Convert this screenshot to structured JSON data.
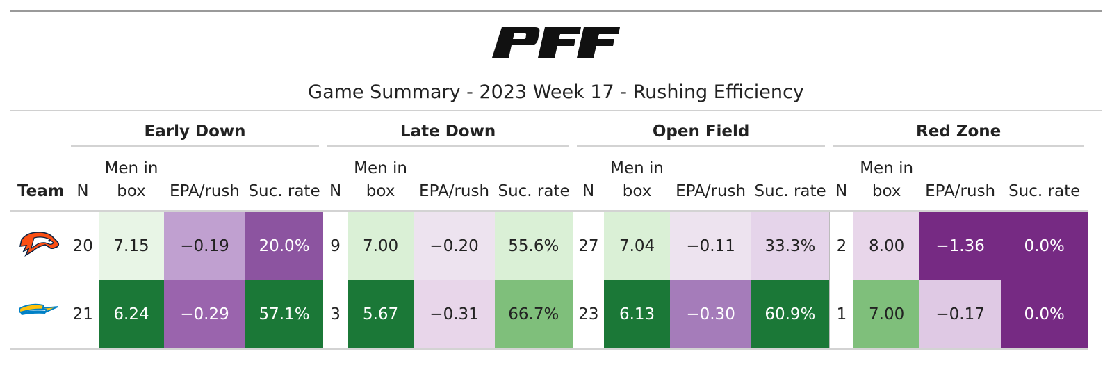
{
  "title": "Game Summary - 2023 Week 17 - Rushing Efficiency",
  "logo_text": "PFF",
  "groups": [
    "Early Down",
    "Late Down",
    "Open Field",
    "Red Zone"
  ],
  "columns": {
    "team": "Team",
    "n": "N",
    "men_line1": "Men in",
    "men_line2": "box",
    "epa": "EPA/rush",
    "suc": "Suc. rate"
  },
  "rows": [
    {
      "team": "Denver Broncos",
      "logo": "broncos-logo",
      "cells": [
        {
          "n": "20",
          "men": "7.15",
          "epa": "−0.19",
          "suc": "20.0%"
        },
        {
          "n": "9",
          "men": "7.00",
          "epa": "−0.20",
          "suc": "55.6%"
        },
        {
          "n": "27",
          "men": "7.04",
          "epa": "−0.11",
          "suc": "33.3%"
        },
        {
          "n": "2",
          "men": "8.00",
          "epa": "−1.36",
          "suc": "0.0%"
        }
      ],
      "colors": [
        {
          "men": "#e8f5e6",
          "epa": "#c0a0d0",
          "suc": "#8c54a0"
        },
        {
          "men": "#daf0d6",
          "epa": "#ede3ef",
          "suc": "#daf0d6"
        },
        {
          "men": "#daf0d6",
          "epa": "#ede3ef",
          "suc": "#e5d4ea"
        },
        {
          "men": "#e8d6ea",
          "epa": "#762a83",
          "suc": "#762a83"
        }
      ]
    },
    {
      "team": "Los Angeles Chargers",
      "logo": "chargers-logo",
      "cells": [
        {
          "n": "21",
          "men": "6.24",
          "epa": "−0.29",
          "suc": "57.1%"
        },
        {
          "n": "3",
          "men": "5.67",
          "epa": "−0.31",
          "suc": "66.7%"
        },
        {
          "n": "23",
          "men": "6.13",
          "epa": "−0.30",
          "suc": "60.9%"
        },
        {
          "n": "1",
          "men": "7.00",
          "epa": "−0.17",
          "suc": "0.0%"
        }
      ],
      "colors": [
        {
          "men": "#1b7837",
          "epa": "#9a64ad",
          "suc": "#1b7837"
        },
        {
          "men": "#1b7837",
          "epa": "#e8d6ea",
          "suc": "#7fbf7b"
        },
        {
          "men": "#1b7837",
          "epa": "#a57cba",
          "suc": "#1b7837"
        },
        {
          "men": "#7fbf7b",
          "epa": "#dfc9e4",
          "suc": "#762a83"
        }
      ]
    }
  ]
}
